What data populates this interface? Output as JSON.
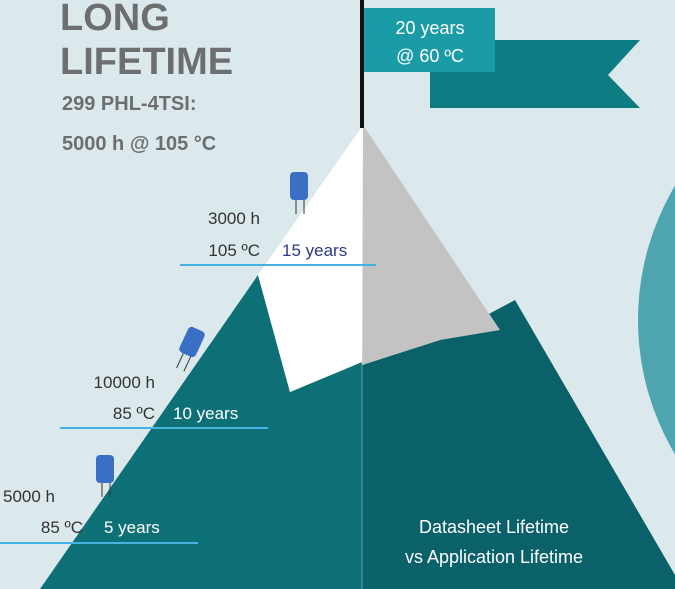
{
  "title": {
    "lines": [
      "LONG",
      "LIFETIME"
    ],
    "subtitle": [
      "299 PHL-4TSI:",
      "5000 h @ 105 °C"
    ]
  },
  "flag": {
    "lines": [
      "20 years",
      "@ 60 ºC"
    ]
  },
  "milestones": [
    {
      "hours": "3000 h",
      "temperature": "105 ºC",
      "lifetime": "15 years"
    },
    {
      "hours": "10000 h",
      "temperature": "85 ºC",
      "lifetime": "10 years"
    },
    {
      "hours": "5000 h",
      "temperature": "85 ºC",
      "lifetime": "5 years"
    }
  ],
  "caption": [
    "Datasheet Lifetime",
    "vs Application Lifetime"
  ]
}
